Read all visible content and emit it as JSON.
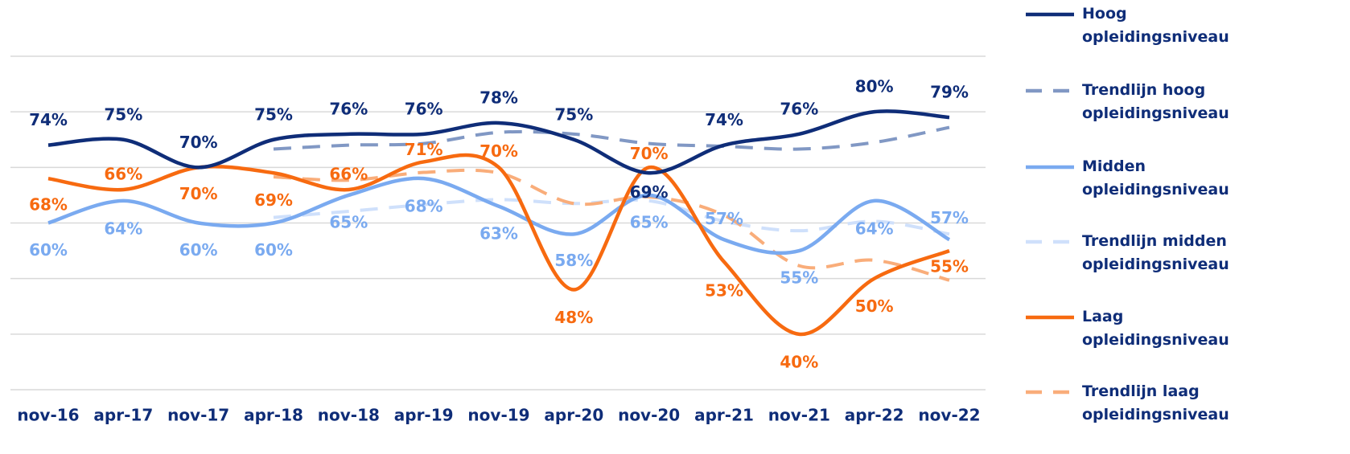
{
  "chart_data": {
    "type": "line",
    "categories": [
      "nov-16",
      "apr-17",
      "nov-17",
      "apr-18",
      "nov-18",
      "apr-19",
      "nov-19",
      "apr-20",
      "nov-20",
      "apr-21",
      "nov-21",
      "apr-22",
      "nov-22"
    ],
    "ylim": [
      30,
      90
    ],
    "yticks": [
      30,
      40,
      50,
      60,
      70,
      80,
      90
    ],
    "grid": true,
    "legend": "right",
    "series": [
      {
        "name": "Hoog opleidingsniveau",
        "color": "#0f2d78",
        "dash": false,
        "values": [
          74,
          75,
          70,
          75,
          76,
          76,
          78,
          75,
          69,
          74,
          76,
          80,
          79
        ],
        "value_labels": [
          "74%",
          "75%",
          "70%",
          "75%",
          "76%",
          "76%",
          "78%",
          "75%",
          "69%",
          "74%",
          "76%",
          "80%",
          "79%"
        ]
      },
      {
        "name": "Trendlijn hoog opleidingsniveau",
        "color": "#8198c4",
        "dash": true,
        "values": [
          null,
          null,
          null,
          73.3,
          74,
          74.3,
          76.3,
          76,
          74.3,
          73.8,
          73.3,
          74.5,
          77.2
        ]
      },
      {
        "name": "Midden opleidingsniveau",
        "color": "#7aaaf0",
        "dash": false,
        "values": [
          60,
          64,
          60,
          60,
          65,
          68,
          63,
          58,
          65,
          57,
          55,
          64,
          57
        ],
        "value_labels": [
          "60%",
          "64%",
          "60%",
          "60%",
          "65%",
          "68%",
          "63%",
          "58%",
          "65%",
          "57%",
          "55%",
          "64%",
          "57%"
        ]
      },
      {
        "name": "Trendlijn midden opleidingsniveau",
        "color": "#cfe0fb",
        "dash": true,
        "values": [
          null,
          null,
          null,
          61,
          62.1,
          63.3,
          64.2,
          63.5,
          64,
          60.3,
          58.6,
          60.3,
          58
        ]
      },
      {
        "name": "Laag opleidingsniveau",
        "color": "#f76a10",
        "dash": false,
        "values": [
          68,
          66,
          70,
          69,
          66,
          71,
          70,
          48,
          70,
          53,
          40,
          50,
          55
        ],
        "value_labels": [
          "68%",
          "66%",
          "70%",
          "69%",
          "66%",
          "71%",
          "70%",
          "48%",
          "70%",
          "53%",
          "40%",
          "50%",
          "55%"
        ]
      },
      {
        "name": "Trendlijn laag opleidingsniveau",
        "color": "#f9ad7a",
        "dash": true,
        "values": [
          null,
          null,
          null,
          68.3,
          67.7,
          69.1,
          69,
          63.5,
          64.7,
          61.4,
          52.3,
          53.3,
          49.7
        ]
      }
    ]
  }
}
